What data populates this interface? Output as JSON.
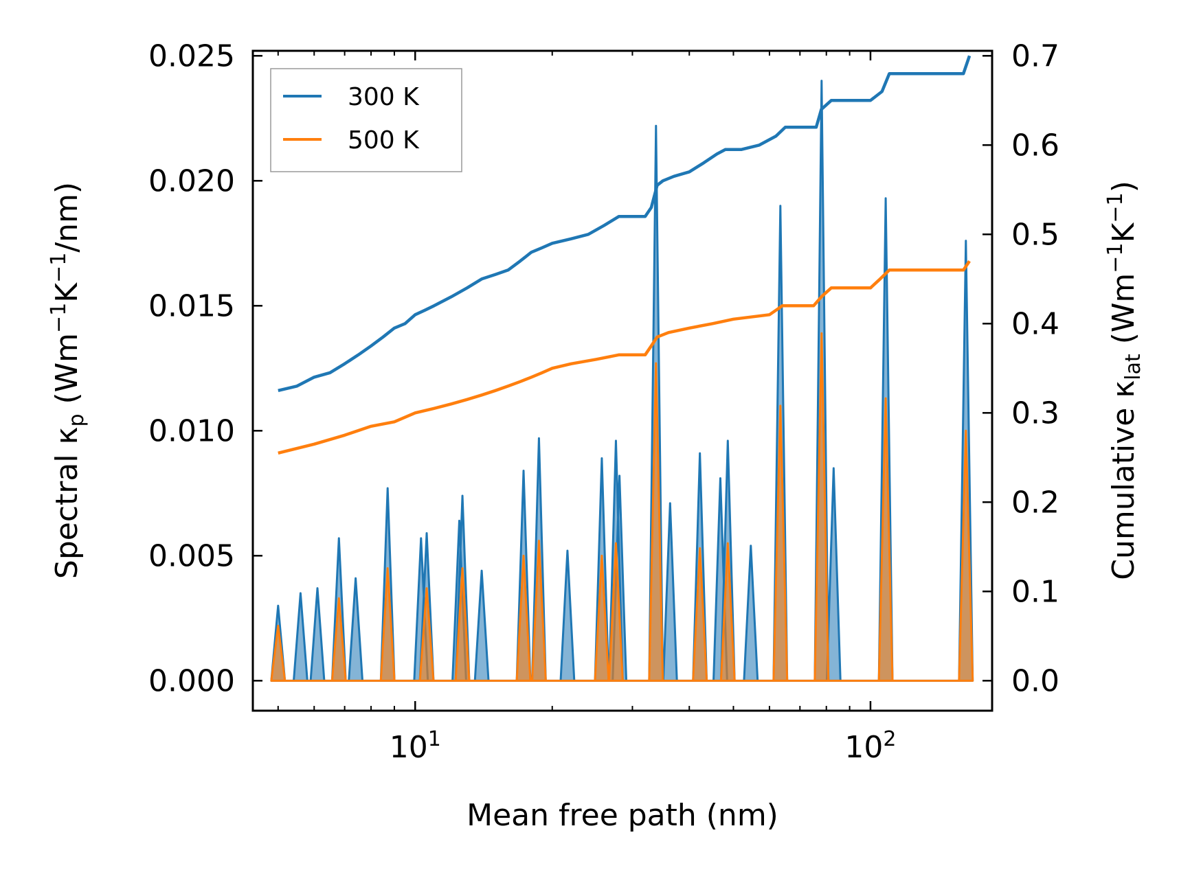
{
  "chart_data": {
    "type": "line",
    "title": "",
    "xlabel": "Mean free path (nm)",
    "ylabel_left": {
      "main": "Spectral κ",
      "sub": "p",
      "units_open": " (Wm",
      "exp1": "−1",
      "units_mid": "K",
      "exp2": "−1",
      "units_close": "/nm)"
    },
    "ylabel_right": {
      "main": "Cumulative κ",
      "sub": "lat",
      "units_open": " (Wm",
      "exp1": "−1",
      "units_mid": "K",
      "exp2": "−1",
      "units_close": ")"
    },
    "xscale": "log",
    "xlim": [
      4.4,
      185
    ],
    "ylim_left": [
      -0.0012,
      0.0252
    ],
    "ylim_right": [
      -0.0336,
      0.7056
    ],
    "x_ticks": [
      {
        "value": 10,
        "base": "10",
        "exp": "1"
      },
      {
        "value": 100,
        "base": "10",
        "exp": "2"
      }
    ],
    "y_ticks_left": [
      "0.000",
      "0.005",
      "0.010",
      "0.015",
      "0.020",
      "0.025"
    ],
    "y_tick_values_left": [
      0,
      0.005,
      0.01,
      0.015,
      0.02,
      0.025
    ],
    "y_ticks_right": [
      "0.0",
      "0.1",
      "0.2",
      "0.3",
      "0.4",
      "0.5",
      "0.6",
      "0.7"
    ],
    "y_tick_values_right": [
      0,
      0.1,
      0.2,
      0.3,
      0.4,
      0.5,
      0.6,
      0.7
    ],
    "legend": {
      "position": "top-left",
      "entries": [
        {
          "label": "300 K",
          "color": "#1f77b4"
        },
        {
          "label": "500 K",
          "color": "#ff7f0e"
        }
      ]
    },
    "spectral_peaks": {
      "description_axis": "left",
      "300K": [
        [
          5.0,
          0.003
        ],
        [
          5.6,
          0.0035
        ],
        [
          6.1,
          0.0037
        ],
        [
          6.8,
          0.0057
        ],
        [
          7.4,
          0.0041
        ],
        [
          8.7,
          0.0077
        ],
        [
          10.3,
          0.0057
        ],
        [
          10.6,
          0.0059
        ],
        [
          12.5,
          0.0064
        ],
        [
          12.7,
          0.0074
        ],
        [
          14.0,
          0.0044
        ],
        [
          17.3,
          0.0084
        ],
        [
          18.7,
          0.0097
        ],
        [
          21.6,
          0.0052
        ],
        [
          25.7,
          0.0089
        ],
        [
          27.6,
          0.0096
        ],
        [
          28.1,
          0.0082
        ],
        [
          33.8,
          0.0222
        ],
        [
          36.3,
          0.0071
        ],
        [
          42.2,
          0.0091
        ],
        [
          46.8,
          0.0081
        ],
        [
          48.6,
          0.0096
        ],
        [
          54.6,
          0.0054
        ],
        [
          63.4,
          0.019
        ],
        [
          78.1,
          0.024
        ],
        [
          83.0,
          0.0085
        ],
        [
          108.0,
          0.0193
        ],
        [
          162.0,
          0.0176
        ]
      ],
      "500K": [
        [
          5.0,
          0.0022
        ],
        [
          6.8,
          0.0033
        ],
        [
          8.7,
          0.0045
        ],
        [
          10.6,
          0.0037
        ],
        [
          12.7,
          0.0045
        ],
        [
          17.3,
          0.005
        ],
        [
          18.7,
          0.0056
        ],
        [
          25.7,
          0.005
        ],
        [
          27.6,
          0.0055
        ],
        [
          33.8,
          0.0127
        ],
        [
          42.2,
          0.0053
        ],
        [
          48.6,
          0.0055
        ],
        [
          63.4,
          0.011
        ],
        [
          78.1,
          0.0139
        ],
        [
          108.0,
          0.0113
        ],
        [
          162.0,
          0.01
        ]
      ]
    },
    "series": [
      {
        "name": "300 K",
        "axis": "right",
        "color": "#1f77b4",
        "x": [
          5.0,
          5.5,
          6.0,
          6.5,
          7.0,
          7.5,
          8.0,
          8.5,
          9.0,
          9.5,
          10.0,
          10.5,
          11.0,
          12.0,
          13.0,
          14.0,
          15.0,
          16.0,
          17.0,
          18.0,
          19.0,
          20.0,
          22.0,
          24.0,
          26.0,
          28.0,
          30.0,
          32.0,
          33.0,
          34.0,
          35.0,
          37.0,
          40.0,
          43.0,
          46.0,
          48.0,
          52.0,
          57.0,
          62.0,
          65.0,
          70.0,
          76.0,
          78.0,
          82.0,
          90.0,
          100.0,
          106.0,
          110.0,
          130.0,
          150.0,
          160.0,
          165.0
        ],
        "y": [
          0.325,
          0.33,
          0.34,
          0.345,
          0.355,
          0.365,
          0.375,
          0.385,
          0.395,
          0.4,
          0.41,
          0.415,
          0.42,
          0.43,
          0.44,
          0.45,
          0.455,
          0.46,
          0.47,
          0.48,
          0.485,
          0.49,
          0.495,
          0.5,
          0.51,
          0.52,
          0.52,
          0.52,
          0.53,
          0.555,
          0.56,
          0.565,
          0.57,
          0.58,
          0.59,
          0.595,
          0.595,
          0.6,
          0.61,
          0.62,
          0.62,
          0.62,
          0.64,
          0.65,
          0.65,
          0.65,
          0.66,
          0.68,
          0.68,
          0.68,
          0.68,
          0.7
        ]
      },
      {
        "name": "500 K",
        "axis": "right",
        "color": "#ff7f0e",
        "x": [
          5.0,
          6.0,
          7.0,
          8.0,
          9.0,
          10.0,
          11.0,
          12.0,
          13.0,
          14.0,
          15.0,
          16.0,
          17.0,
          18.0,
          19.0,
          20.0,
          22.0,
          25.0,
          28.0,
          30.0,
          32.0,
          33.0,
          34.0,
          36.0,
          40.0,
          45.0,
          50.0,
          60.0,
          62.0,
          64.0,
          75.0,
          78.0,
          82.0,
          90.0,
          100.0,
          105.0,
          110.0,
          130.0,
          160.0,
          165.0
        ],
        "y": [
          0.255,
          0.265,
          0.275,
          0.285,
          0.29,
          0.3,
          0.305,
          0.31,
          0.315,
          0.32,
          0.325,
          0.33,
          0.335,
          0.34,
          0.345,
          0.35,
          0.355,
          0.36,
          0.365,
          0.365,
          0.365,
          0.375,
          0.385,
          0.39,
          0.395,
          0.4,
          0.405,
          0.41,
          0.415,
          0.42,
          0.42,
          0.43,
          0.44,
          0.44,
          0.44,
          0.45,
          0.46,
          0.46,
          0.46,
          0.47
        ]
      }
    ]
  }
}
